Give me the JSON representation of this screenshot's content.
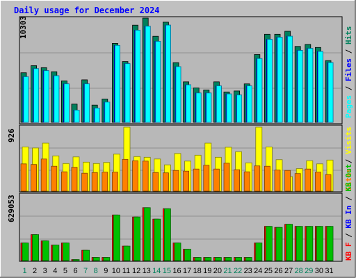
{
  "chart_data": [
    {
      "type": "bar",
      "title": "Daily usage for December 2024",
      "categories": [
        "1",
        "2",
        "3",
        "4",
        "5",
        "6",
        "7",
        "8",
        "9",
        "10",
        "11",
        "12",
        "13",
        "14",
        "15",
        "16",
        "17",
        "18",
        "19",
        "20",
        "21",
        "22",
        "23",
        "24",
        "25",
        "26",
        "27",
        "28",
        "29",
        "30",
        "31"
      ],
      "weekend_days": [
        1,
        7,
        8,
        14,
        15,
        21,
        22,
        28,
        29
      ],
      "y_max_label": "10303",
      "ylim": [
        0,
        10303
      ],
      "series": [
        {
          "name": "Hits",
          "color": "#00805c",
          "values": [
            4900,
            5600,
            5400,
            5000,
            4100,
            1800,
            4200,
            1700,
            2300,
            7800,
            6000,
            9600,
            10303,
            8500,
            9900,
            5900,
            4000,
            3400,
            3200,
            4000,
            3000,
            3100,
            3800,
            6700,
            8700,
            8700,
            9000,
            7500,
            7700,
            7400,
            6100
          ]
        },
        {
          "name": "Files",
          "color": "#0000ff",
          "values": [
            4500,
            5300,
            5100,
            4600,
            3800,
            1200,
            3800,
            1400,
            2000,
            7600,
            5800,
            9100,
            9500,
            8000,
            9600,
            5500,
            3700,
            2900,
            2900,
            3600,
            2800,
            2700,
            3600,
            6300,
            8200,
            8400,
            8500,
            7100,
            7300,
            7000,
            5900
          ]
        },
        {
          "name": "Pages",
          "color": "#00ffff",
          "values": [
            4500,
            5300,
            5100,
            4600,
            3800,
            1200,
            3800,
            1400,
            2000,
            7600,
            5800,
            9100,
            9500,
            8000,
            9600,
            5500,
            3700,
            2900,
            2900,
            3600,
            2800,
            2700,
            3600,
            6300,
            8200,
            8400,
            8500,
            7100,
            7300,
            7000,
            5900
          ]
        }
      ]
    },
    {
      "type": "bar",
      "y_max_label": "926",
      "ylim": [
        0,
        926
      ],
      "series": [
        {
          "name": "Visits",
          "color": "#ffff00",
          "values": [
            640,
            625,
            695,
            510,
            400,
            495,
            420,
            400,
            415,
            535,
            926,
            500,
            490,
            465,
            380,
            545,
            435,
            520,
            695,
            490,
            635,
            570,
            410,
            926,
            640,
            455,
            210,
            325,
            440,
            395,
            450
          ]
        },
        {
          "name": "Sites",
          "color": "#ff8000",
          "values": [
            395,
            385,
            465,
            360,
            280,
            345,
            260,
            270,
            275,
            275,
            460,
            440,
            435,
            270,
            265,
            300,
            290,
            320,
            375,
            320,
            405,
            310,
            280,
            365,
            360,
            305,
            300,
            255,
            320,
            275,
            240
          ]
        }
      ]
    },
    {
      "type": "bar",
      "y_max_label": "629053",
      "ylim": [
        0,
        629053
      ],
      "series": [
        {
          "name": "KB F",
          "color": "#ff0000",
          "values": [
            170000,
            250000,
            190000,
            150000,
            170000,
            10000,
            100000,
            30000,
            30000,
            440000,
            140000,
            420000,
            510000,
            400000,
            500000,
            170000,
            110000,
            30000,
            30000,
            30000,
            30000,
            30000,
            30000,
            170000,
            330000,
            320000,
            350000,
            330000,
            330000,
            330000,
            330000
          ]
        },
        {
          "name": "KB In",
          "color": "#0000ff",
          "values": [
            0,
            0,
            0,
            0,
            0,
            0,
            0,
            0,
            0,
            0,
            0,
            0,
            0,
            0,
            0,
            0,
            0,
            0,
            0,
            0,
            0,
            0,
            0,
            0,
            0,
            0,
            0,
            0,
            0,
            0,
            0
          ]
        },
        {
          "name": "KB Out",
          "color": "#00c000",
          "values": [
            170000,
            250000,
            190000,
            150000,
            170000,
            10000,
            100000,
            30000,
            30000,
            440000,
            140000,
            420000,
            510000,
            400000,
            500000,
            170000,
            110000,
            30000,
            30000,
            30000,
            30000,
            30000,
            30000,
            170000,
            330000,
            320000,
            350000,
            330000,
            330000,
            330000,
            330000
          ]
        }
      ]
    }
  ]
}
